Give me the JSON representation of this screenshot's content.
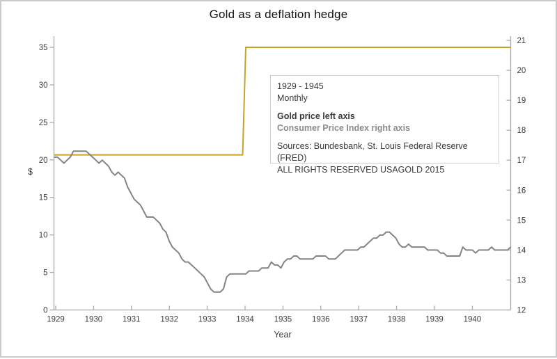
{
  "chart_data": {
    "type": "line",
    "title": "Gold as a deflation hedge",
    "xlabel": "Year",
    "ylabel_left": "$",
    "x_start_year": 1929,
    "frequency": "monthly",
    "grid": false,
    "x_ticks": [
      1929,
      1930,
      1931,
      1932,
      1933,
      1934,
      1935,
      1936,
      1937,
      1938,
      1939,
      1940
    ],
    "left_axis": {
      "ticks": [
        0,
        5,
        10,
        15,
        20,
        25,
        30,
        35
      ],
      "range": [
        0,
        36.5
      ]
    },
    "right_axis": {
      "ticks": [
        12,
        13,
        14,
        15,
        16,
        17,
        18,
        19,
        20,
        21
      ],
      "range": [
        12,
        21.15
      ]
    },
    "series": [
      {
        "name": "Gold price",
        "axis": "left",
        "color": "#c8a227",
        "values": [
          20.67,
          20.67,
          20.67,
          20.67,
          20.67,
          20.67,
          20.67,
          20.67,
          20.67,
          20.67,
          20.67,
          20.67,
          20.67,
          20.67,
          20.67,
          20.67,
          20.67,
          20.67,
          20.67,
          20.67,
          20.67,
          20.67,
          20.67,
          20.67,
          20.67,
          20.67,
          20.67,
          20.67,
          20.67,
          20.67,
          20.67,
          20.67,
          20.67,
          20.67,
          20.67,
          20.67,
          20.67,
          20.67,
          20.67,
          20.67,
          20.67,
          20.67,
          20.67,
          20.67,
          20.67,
          20.67,
          20.67,
          20.67,
          20.67,
          20.67,
          20.67,
          20.67,
          20.67,
          20.67,
          20.67,
          20.67,
          20.67,
          20.67,
          20.67,
          20.67,
          35,
          35,
          35,
          35,
          35,
          35,
          35,
          35,
          35,
          35,
          35,
          35,
          35,
          35,
          35,
          35,
          35,
          35,
          35,
          35,
          35,
          35,
          35,
          35,
          35,
          35,
          35,
          35,
          35,
          35,
          35,
          35,
          35,
          35,
          35,
          35,
          35,
          35,
          35,
          35,
          35,
          35,
          35,
          35,
          35,
          35,
          35,
          35,
          35,
          35,
          35,
          35,
          35,
          35,
          35,
          35,
          35,
          35,
          35,
          35,
          35,
          35,
          35,
          35,
          35,
          35,
          35,
          35,
          35,
          35,
          35,
          35,
          35,
          35,
          35,
          35,
          35,
          35,
          35,
          35,
          35,
          35,
          35,
          35
        ]
      },
      {
        "name": "Consumer Price Index",
        "axis": "right",
        "color": "#848484",
        "values": [
          17.1,
          17.1,
          17.0,
          16.9,
          17.0,
          17.1,
          17.3,
          17.3,
          17.3,
          17.3,
          17.3,
          17.2,
          17.1,
          17.0,
          16.9,
          17.0,
          16.9,
          16.8,
          16.6,
          16.5,
          16.6,
          16.5,
          16.4,
          16.1,
          15.9,
          15.7,
          15.6,
          15.5,
          15.3,
          15.1,
          15.1,
          15.1,
          15.0,
          14.9,
          14.7,
          14.6,
          14.3,
          14.1,
          14.0,
          13.9,
          13.7,
          13.6,
          13.6,
          13.5,
          13.4,
          13.3,
          13.2,
          13.1,
          12.9,
          12.7,
          12.6,
          12.6,
          12.6,
          12.7,
          13.1,
          13.2,
          13.2,
          13.2,
          13.2,
          13.2,
          13.2,
          13.3,
          13.3,
          13.3,
          13.3,
          13.4,
          13.4,
          13.4,
          13.6,
          13.5,
          13.5,
          13.4,
          13.6,
          13.7,
          13.7,
          13.8,
          13.8,
          13.7,
          13.7,
          13.7,
          13.7,
          13.7,
          13.8,
          13.8,
          13.8,
          13.8,
          13.7,
          13.7,
          13.7,
          13.8,
          13.9,
          14.0,
          14.0,
          14.0,
          14.0,
          14.0,
          14.1,
          14.1,
          14.2,
          14.3,
          14.4,
          14.4,
          14.5,
          14.5,
          14.6,
          14.6,
          14.5,
          14.4,
          14.2,
          14.1,
          14.1,
          14.2,
          14.1,
          14.1,
          14.1,
          14.1,
          14.1,
          14.0,
          14.0,
          14.0,
          14.0,
          13.9,
          13.9,
          13.8,
          13.8,
          13.8,
          13.8,
          13.8,
          14.1,
          14.0,
          14.0,
          14.0,
          13.9,
          14.0,
          14.0,
          14.0,
          14.0,
          14.1,
          14.0,
          14.0,
          14.0,
          14.0,
          14.0,
          14.1
        ]
      }
    ],
    "legend_position": "upper middle-right, boxed"
  },
  "legend_box": {
    "range_label": "1929 - 1945",
    "frequency_label": "Monthly",
    "gold_series_label": "Gold price left axis",
    "cpi_series_label": "Consumer Price Index right axis",
    "sources_line1": "Sources: Bundesbank, St. Louis Federal Reserve (FRED)",
    "sources_line2": "ALL RIGHTS RESERVED USAGOLD 2015"
  },
  "colors": {
    "gold_line": "#c8a227",
    "cpi_line": "#848484",
    "axis": "#ababab",
    "tick_text": "#3c3c3c",
    "legend_border": "#cfcfcf",
    "legend_gray_text": "#8c8c8c"
  }
}
